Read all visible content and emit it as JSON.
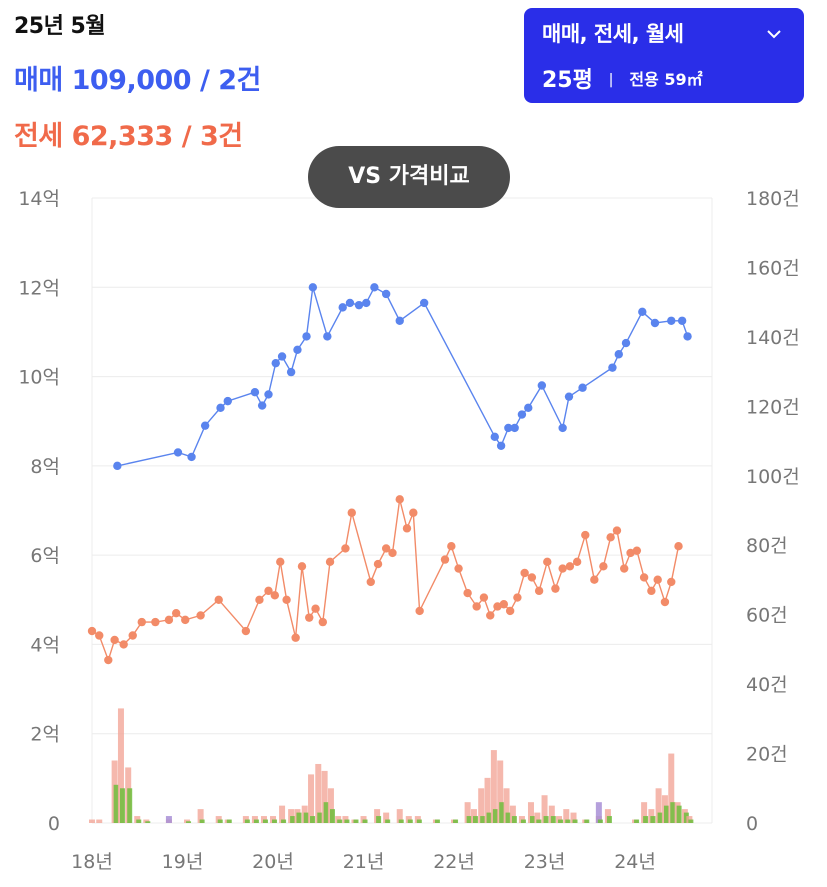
{
  "header": {
    "period": "25년 5월",
    "sale": {
      "label": "매매",
      "price": "109,000",
      "count": "2건"
    },
    "jeonse": {
      "label": "전세",
      "price": "62,333",
      "count": "3건"
    }
  },
  "filter": {
    "types": "매매, 전세, 월세",
    "size": "25평",
    "separator": "|",
    "area": "전용 59㎡",
    "icon": "chevron-down-icon"
  },
  "compare_button": "VS 가격비교",
  "colors": {
    "sale": "#5a84ee",
    "jeonse": "#f28b68",
    "bar_pink": "#f3a698",
    "bar_green": "#6fbd3c",
    "bar_purple": "#a88fd6",
    "accent": "#2a2ee8"
  },
  "chart_data": {
    "type": "line",
    "left_ticks": [
      "0",
      "2억",
      "4억",
      "6억",
      "8억",
      "10억",
      "12억",
      "14억"
    ],
    "right_ticks": [
      "0",
      "20건",
      "40건",
      "60건",
      "80건",
      "100건",
      "120건",
      "140건",
      "160건",
      "180건"
    ],
    "x_ticks": [
      "18년",
      "19년",
      "20년",
      "21년",
      "22년",
      "23년",
      "24년"
    ],
    "x_range": [
      2018.0,
      2024.85
    ],
    "ylim_price_eok": [
      0,
      14
    ],
    "ylim_count": [
      0,
      180
    ],
    "grid": true,
    "series": [
      {
        "type": "line",
        "color": "sale",
        "points": [
          [
            2018.28,
            8.0
          ],
          [
            2018.95,
            8.3
          ],
          [
            2019.1,
            8.2
          ],
          [
            2019.25,
            8.9
          ],
          [
            2019.42,
            9.3
          ],
          [
            2019.5,
            9.45
          ],
          [
            2019.8,
            9.65
          ],
          [
            2019.88,
            9.35
          ],
          [
            2019.95,
            9.6
          ],
          [
            2020.03,
            10.3
          ],
          [
            2020.1,
            10.45
          ],
          [
            2020.2,
            10.1
          ],
          [
            2020.27,
            10.6
          ],
          [
            2020.37,
            10.9
          ],
          [
            2020.44,
            12.0
          ],
          [
            2020.6,
            10.9
          ],
          [
            2020.77,
            11.55
          ],
          [
            2020.85,
            11.65
          ],
          [
            2020.95,
            11.6
          ],
          [
            2021.03,
            11.65
          ],
          [
            2021.12,
            12.0
          ],
          [
            2021.25,
            11.85
          ],
          [
            2021.4,
            11.25
          ],
          [
            2021.67,
            11.65
          ],
          [
            2022.45,
            8.65
          ],
          [
            2022.52,
            8.45
          ],
          [
            2022.6,
            8.85
          ],
          [
            2022.67,
            8.85
          ],
          [
            2022.75,
            9.15
          ],
          [
            2022.82,
            9.3
          ],
          [
            2022.97,
            9.8
          ],
          [
            2023.2,
            8.85
          ],
          [
            2023.27,
            9.55
          ],
          [
            2023.42,
            9.75
          ],
          [
            2023.75,
            10.2
          ],
          [
            2023.82,
            10.5
          ],
          [
            2023.9,
            10.75
          ],
          [
            2024.08,
            11.45
          ],
          [
            2024.22,
            11.2
          ],
          [
            2024.4,
            11.25
          ],
          [
            2024.52,
            11.25
          ],
          [
            2024.58,
            10.9
          ]
        ]
      },
      {
        "type": "line",
        "color": "jeonse",
        "points": [
          [
            2018.0,
            4.3
          ],
          [
            2018.08,
            4.2
          ],
          [
            2018.18,
            3.65
          ],
          [
            2018.25,
            4.1
          ],
          [
            2018.35,
            4.0
          ],
          [
            2018.45,
            4.2
          ],
          [
            2018.55,
            4.5
          ],
          [
            2018.7,
            4.5
          ],
          [
            2018.85,
            4.55
          ],
          [
            2018.93,
            4.7
          ],
          [
            2019.03,
            4.55
          ],
          [
            2019.2,
            4.65
          ],
          [
            2019.4,
            5.0
          ],
          [
            2019.7,
            4.3
          ],
          [
            2019.85,
            5.0
          ],
          [
            2019.95,
            5.2
          ],
          [
            2020.02,
            5.1
          ],
          [
            2020.08,
            5.85
          ],
          [
            2020.15,
            5.0
          ],
          [
            2020.25,
            4.15
          ],
          [
            2020.32,
            5.75
          ],
          [
            2020.4,
            4.6
          ],
          [
            2020.47,
            4.8
          ],
          [
            2020.55,
            4.5
          ],
          [
            2020.63,
            5.85
          ],
          [
            2020.8,
            6.15
          ],
          [
            2020.87,
            6.95
          ],
          [
            2021.08,
            5.4
          ],
          [
            2021.16,
            5.8
          ],
          [
            2021.25,
            6.15
          ],
          [
            2021.32,
            6.05
          ],
          [
            2021.4,
            7.25
          ],
          [
            2021.48,
            6.6
          ],
          [
            2021.55,
            6.95
          ],
          [
            2021.62,
            4.75
          ],
          [
            2021.9,
            5.9
          ],
          [
            2021.97,
            6.2
          ],
          [
            2022.05,
            5.7
          ],
          [
            2022.15,
            5.15
          ],
          [
            2022.25,
            4.85
          ],
          [
            2022.33,
            5.05
          ],
          [
            2022.4,
            4.65
          ],
          [
            2022.48,
            4.85
          ],
          [
            2022.55,
            4.9
          ],
          [
            2022.62,
            4.75
          ],
          [
            2022.7,
            5.05
          ],
          [
            2022.78,
            5.6
          ],
          [
            2022.86,
            5.5
          ],
          [
            2022.94,
            5.2
          ],
          [
            2023.03,
            5.85
          ],
          [
            2023.12,
            5.25
          ],
          [
            2023.2,
            5.7
          ],
          [
            2023.28,
            5.75
          ],
          [
            2023.36,
            5.85
          ],
          [
            2023.45,
            6.45
          ],
          [
            2023.55,
            5.45
          ],
          [
            2023.65,
            5.75
          ],
          [
            2023.73,
            6.4
          ],
          [
            2023.8,
            6.55
          ],
          [
            2023.88,
            5.7
          ],
          [
            2023.95,
            6.05
          ],
          [
            2024.02,
            6.1
          ],
          [
            2024.1,
            5.5
          ],
          [
            2024.18,
            5.2
          ],
          [
            2024.25,
            5.45
          ],
          [
            2024.33,
            4.95
          ],
          [
            2024.4,
            5.4
          ],
          [
            2024.48,
            6.2
          ]
        ]
      }
    ],
    "bars": [
      {
        "x": 2018.0,
        "pink": 1.0,
        "green": 0
      },
      {
        "x": 2018.08,
        "pink": 1.0,
        "green": 0
      },
      {
        "x": 2018.25,
        "pink": 18,
        "green": 11
      },
      {
        "x": 2018.32,
        "pink": 33,
        "green": 10
      },
      {
        "x": 2018.4,
        "pink": 16,
        "green": 10
      },
      {
        "x": 2018.5,
        "pink": 2,
        "green": 1
      },
      {
        "x": 2018.6,
        "pink": 1,
        "green": 0.5
      },
      {
        "x": 2018.85,
        "pink": 1,
        "green": 0,
        "purple": 2
      },
      {
        "x": 2019.05,
        "pink": 1,
        "green": 0.5
      },
      {
        "x": 2019.2,
        "pink": 4,
        "green": 1
      },
      {
        "x": 2019.4,
        "pink": 2,
        "green": 1
      },
      {
        "x": 2019.5,
        "pink": 1,
        "green": 1
      },
      {
        "x": 2019.7,
        "pink": 2,
        "green": 1
      },
      {
        "x": 2019.8,
        "pink": 2,
        "green": 1
      },
      {
        "x": 2019.9,
        "pink": 2,
        "green": 1
      },
      {
        "x": 2020.0,
        "pink": 2,
        "green": 1
      },
      {
        "x": 2020.1,
        "pink": 5,
        "green": 1
      },
      {
        "x": 2020.2,
        "pink": 4,
        "green": 2
      },
      {
        "x": 2020.27,
        "pink": 4,
        "green": 3
      },
      {
        "x": 2020.35,
        "pink": 5,
        "green": 3
      },
      {
        "x": 2020.42,
        "pink": 14,
        "green": 2
      },
      {
        "x": 2020.5,
        "pink": 17,
        "green": 3
      },
      {
        "x": 2020.57,
        "pink": 15,
        "green": 6
      },
      {
        "x": 2020.64,
        "pink": 10,
        "green": 4
      },
      {
        "x": 2020.72,
        "pink": 2,
        "green": 1
      },
      {
        "x": 2020.8,
        "pink": 2,
        "green": 1
      },
      {
        "x": 2020.9,
        "pink": 1,
        "green": 1
      },
      {
        "x": 2021.0,
        "pink": 2,
        "green": 1
      },
      {
        "x": 2021.15,
        "pink": 4,
        "green": 2
      },
      {
        "x": 2021.25,
        "pink": 3,
        "green": 1
      },
      {
        "x": 2021.4,
        "pink": 4,
        "green": 1
      },
      {
        "x": 2021.5,
        "pink": 2,
        "green": 1
      },
      {
        "x": 2021.6,
        "pink": 2,
        "green": 1
      },
      {
        "x": 2021.8,
        "pink": 1,
        "green": 1
      },
      {
        "x": 2022.0,
        "pink": 1,
        "green": 1
      },
      {
        "x": 2022.15,
        "pink": 6,
        "green": 2
      },
      {
        "x": 2022.22,
        "pink": 4,
        "green": 2
      },
      {
        "x": 2022.3,
        "pink": 10,
        "green": 2
      },
      {
        "x": 2022.37,
        "pink": 13,
        "green": 3
      },
      {
        "x": 2022.44,
        "pink": 21,
        "green": 4
      },
      {
        "x": 2022.51,
        "pink": 18,
        "green": 6
      },
      {
        "x": 2022.58,
        "pink": 10,
        "green": 3
      },
      {
        "x": 2022.65,
        "pink": 5,
        "green": 2
      },
      {
        "x": 2022.75,
        "pink": 2,
        "green": 1
      },
      {
        "x": 2022.85,
        "pink": 6,
        "green": 2
      },
      {
        "x": 2022.92,
        "pink": 3,
        "green": 1
      },
      {
        "x": 2023.0,
        "pink": 8,
        "green": 2
      },
      {
        "x": 2023.08,
        "pink": 5,
        "green": 2
      },
      {
        "x": 2023.16,
        "pink": 2,
        "green": 1
      },
      {
        "x": 2023.24,
        "pink": 4,
        "green": 1
      },
      {
        "x": 2023.32,
        "pink": 3,
        "green": 1
      },
      {
        "x": 2023.45,
        "pink": 1,
        "green": 1
      },
      {
        "x": 2023.6,
        "pink": 2,
        "green": 1,
        "purple": 6
      },
      {
        "x": 2023.7,
        "pink": 4,
        "green": 2
      },
      {
        "x": 2024.0,
        "pink": 1,
        "green": 1
      },
      {
        "x": 2024.1,
        "pink": 6,
        "green": 2
      },
      {
        "x": 2024.18,
        "pink": 4,
        "green": 2
      },
      {
        "x": 2024.26,
        "pink": 10,
        "green": 3
      },
      {
        "x": 2024.33,
        "pink": 8,
        "green": 5
      },
      {
        "x": 2024.4,
        "pink": 20,
        "green": 6
      },
      {
        "x": 2024.47,
        "pink": 6,
        "green": 5
      },
      {
        "x": 2024.55,
        "pink": 4,
        "green": 3
      },
      {
        "x": 2024.6,
        "pink": 2,
        "green": 1
      }
    ]
  }
}
